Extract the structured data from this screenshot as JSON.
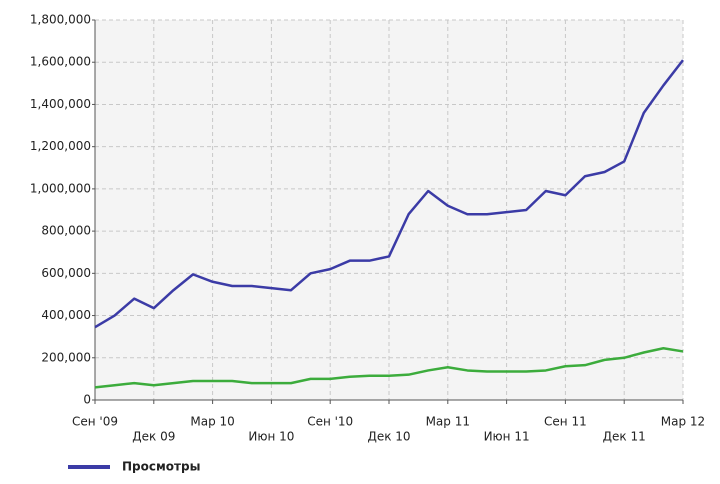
{
  "chart_data": {
    "type": "line",
    "categories": [
      "Сен '09",
      null,
      null,
      "Дек 09",
      null,
      null,
      "Мар 10",
      null,
      null,
      "Июн 10",
      null,
      null,
      "Сен '10",
      null,
      null,
      "Дек 10",
      null,
      null,
      "Мар 11",
      null,
      null,
      "Июн 11",
      null,
      null,
      "Сен 11",
      null,
      null,
      "Дек 11",
      null,
      null,
      "Мар 12"
    ],
    "series": [
      {
        "name": "Просмотры",
        "color": "#3b3ba6",
        "values": [
          345000,
          400000,
          480000,
          435000,
          520000,
          595000,
          560000,
          540000,
          540000,
          530000,
          520000,
          600000,
          620000,
          660000,
          660000,
          680000,
          880000,
          990000,
          920000,
          880000,
          880000,
          890000,
          900000,
          990000,
          970000,
          1060000,
          1080000,
          1130000,
          1360000,
          1490000,
          1610000
        ]
      },
      {
        "color": "#3cac3c",
        "values": [
          60000,
          70000,
          80000,
          70000,
          80000,
          90000,
          90000,
          90000,
          80000,
          80000,
          80000,
          100000,
          100000,
          110000,
          115000,
          115000,
          120000,
          140000,
          155000,
          140000,
          135000,
          135000,
          135000,
          140000,
          160000,
          165000,
          190000,
          200000,
          225000,
          245000,
          230000
        ]
      }
    ],
    "ylim": [
      0,
      1800000
    ],
    "yticks": [
      0,
      {
        "value": 200000,
        "label": "200,000"
      },
      {
        "value": 400000,
        "label": "400,000"
      },
      {
        "value": 600000,
        "label": "600,000"
      },
      {
        "value": 800000,
        "label": "800,000"
      },
      {
        "value": 1000000,
        "label": "1,000,000"
      },
      {
        "value": 1200000,
        "label": "1,200,000"
      },
      {
        "value": 1400000,
        "label": "1,400,000"
      },
      {
        "value": 1600000,
        "label": "1,600,000"
      },
      {
        "value": 1800000,
        "label": "1,800,000"
      }
    ],
    "grid": true
  }
}
